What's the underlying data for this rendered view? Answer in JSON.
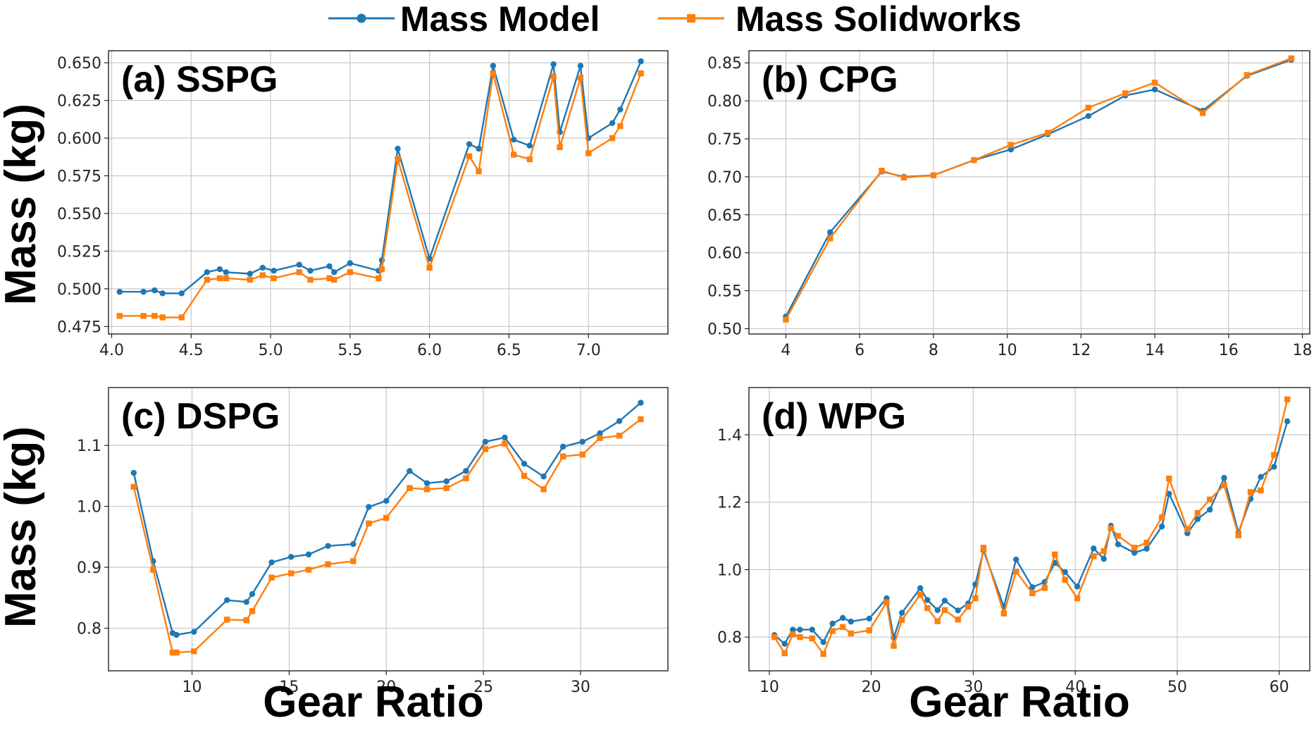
{
  "colors": {
    "mass_model": "#1f77b4",
    "mass_solidworks": "#ff7f0e"
  },
  "legend": {
    "items": [
      {
        "label": "Mass Model",
        "marker": "circle",
        "color": "#1f77b4"
      },
      {
        "label": "Mass Solidworks",
        "marker": "square",
        "color": "#ff7f0e"
      }
    ]
  },
  "xlabel": "Gear Ratio",
  "ylabel": "Mass (kg)",
  "chart_data": [
    {
      "id": "a",
      "type": "line",
      "title": "(a) SSPG",
      "xlabel": "Gear Ratio",
      "ylabel": "Mass (kg)",
      "xlim": [
        3.98,
        7.5
      ],
      "ylim": [
        0.47,
        0.658
      ],
      "xticks": [
        4.0,
        4.5,
        5.0,
        5.5,
        6.0,
        6.5,
        7.0
      ],
      "xtick_labels": [
        "4.0",
        "4.5",
        "5.0",
        "5.5",
        "6.0",
        "6.5",
        "7.0"
      ],
      "yticks": [
        0.475,
        0.5,
        0.525,
        0.55,
        0.575,
        0.6,
        0.625,
        0.65
      ],
      "ytick_labels": [
        "0.475",
        "0.500",
        "0.525",
        "0.550",
        "0.575",
        "0.600",
        "0.625",
        "0.650"
      ],
      "series": [
        {
          "name": "Mass Model",
          "x": [
            4.05,
            4.2,
            4.27,
            4.32,
            4.44,
            4.6,
            4.68,
            4.72,
            4.87,
            4.95,
            5.02,
            5.18,
            5.25,
            5.37,
            5.4,
            5.5,
            5.68,
            5.7,
            5.8,
            6.0,
            6.25,
            6.31,
            6.4,
            6.53,
            6.63,
            6.78,
            6.82,
            6.95,
            7.0,
            7.15,
            7.2,
            7.33
          ],
          "values": [
            0.498,
            0.498,
            0.499,
            0.497,
            0.497,
            0.511,
            0.513,
            0.511,
            0.51,
            0.514,
            0.512,
            0.516,
            0.512,
            0.515,
            0.511,
            0.517,
            0.512,
            0.519,
            0.593,
            0.52,
            0.596,
            0.593,
            0.648,
            0.599,
            0.595,
            0.649,
            0.604,
            0.648,
            0.6,
            0.61,
            0.619,
            0.651
          ]
        },
        {
          "name": "Mass Solidworks",
          "x": [
            4.05,
            4.2,
            4.27,
            4.32,
            4.44,
            4.6,
            4.68,
            4.72,
            4.87,
            4.95,
            5.02,
            5.18,
            5.25,
            5.37,
            5.4,
            5.5,
            5.68,
            5.7,
            5.8,
            6.0,
            6.25,
            6.31,
            6.4,
            6.53,
            6.63,
            6.78,
            6.82,
            6.95,
            7.0,
            7.15,
            7.2,
            7.33
          ],
          "values": [
            0.482,
            0.482,
            0.482,
            0.481,
            0.481,
            0.506,
            0.507,
            0.507,
            0.506,
            0.509,
            0.507,
            0.511,
            0.506,
            0.507,
            0.506,
            0.511,
            0.507,
            0.513,
            0.586,
            0.514,
            0.588,
            0.578,
            0.643,
            0.589,
            0.586,
            0.641,
            0.594,
            0.64,
            0.59,
            0.6,
            0.608,
            0.643
          ]
        }
      ]
    },
    {
      "id": "b",
      "type": "line",
      "title": "(b) CPG",
      "xlabel": "Gear Ratio",
      "ylabel": "Mass (kg)",
      "xlim": [
        3.0,
        18.2
      ],
      "ylim": [
        0.493,
        0.866
      ],
      "xticks": [
        4,
        6,
        8,
        10,
        12,
        14,
        16,
        18
      ],
      "xtick_labels": [
        "4",
        "6",
        "8",
        "10",
        "12",
        "14",
        "16",
        "18"
      ],
      "yticks": [
        0.5,
        0.55,
        0.6,
        0.65,
        0.7,
        0.75,
        0.8,
        0.85
      ],
      "ytick_labels": [
        "0.50",
        "0.55",
        "0.60",
        "0.65",
        "0.70",
        "0.75",
        "0.80",
        "0.85"
      ],
      "series": [
        {
          "name": "Mass Model",
          "x": [
            4.0,
            5.2,
            6.6,
            7.2,
            8.0,
            9.1,
            10.1,
            11.1,
            12.2,
            13.2,
            14.0,
            15.3,
            16.5,
            17.7
          ],
          "values": [
            0.516,
            0.627,
            0.707,
            0.7,
            0.702,
            0.722,
            0.736,
            0.756,
            0.78,
            0.807,
            0.815,
            0.787,
            0.833,
            0.854
          ]
        },
        {
          "name": "Mass Solidworks",
          "x": [
            4.0,
            5.2,
            6.6,
            7.2,
            8.0,
            9.1,
            10.1,
            11.1,
            12.2,
            13.2,
            14.0,
            15.3,
            16.5,
            17.7
          ],
          "values": [
            0.512,
            0.619,
            0.708,
            0.699,
            0.702,
            0.722,
            0.742,
            0.758,
            0.791,
            0.81,
            0.824,
            0.784,
            0.834,
            0.856
          ]
        }
      ]
    },
    {
      "id": "c",
      "type": "line",
      "title": "(c) DSPG",
      "xlabel": "Gear Ratio",
      "ylabel": "Mass (kg)",
      "xlim": [
        5.7,
        34.5
      ],
      "ylim": [
        0.73,
        1.195
      ],
      "xticks": [
        10,
        15,
        20,
        25,
        30
      ],
      "xtick_labels": [
        "10",
        "15",
        "20",
        "25",
        "30"
      ],
      "yticks": [
        0.8,
        0.9,
        1.0,
        1.1
      ],
      "ytick_labels": [
        "0.8",
        "0.9",
        "1.0",
        "1.1"
      ],
      "series": [
        {
          "name": "Mass Model",
          "x": [
            7.0,
            8.0,
            9.0,
            9.2,
            10.1,
            11.8,
            12.8,
            13.1,
            14.1,
            15.1,
            16.0,
            17.0,
            18.3,
            19.1,
            20.0,
            21.2,
            22.1,
            23.1,
            24.1,
            25.1,
            26.1,
            27.1,
            28.1,
            29.1,
            30.1,
            31.0,
            32.0,
            33.1
          ],
          "values": [
            1.055,
            0.91,
            0.792,
            0.789,
            0.794,
            0.846,
            0.843,
            0.856,
            0.908,
            0.917,
            0.921,
            0.935,
            0.938,
            0.999,
            1.009,
            1.058,
            1.038,
            1.041,
            1.058,
            1.106,
            1.113,
            1.07,
            1.049,
            1.098,
            1.106,
            1.12,
            1.14,
            1.17
          ]
        },
        {
          "name": "Mass Solidworks",
          "x": [
            7.0,
            8.0,
            9.0,
            9.2,
            10.1,
            11.8,
            12.8,
            13.1,
            14.1,
            15.1,
            16.0,
            17.0,
            18.3,
            19.1,
            20.0,
            21.2,
            22.1,
            23.1,
            24.1,
            25.1,
            26.1,
            27.1,
            28.1,
            29.1,
            30.1,
            31.0,
            32.0,
            33.1
          ],
          "values": [
            1.032,
            0.896,
            0.76,
            0.76,
            0.762,
            0.814,
            0.813,
            0.828,
            0.883,
            0.89,
            0.896,
            0.905,
            0.91,
            0.972,
            0.981,
            1.03,
            1.028,
            1.03,
            1.046,
            1.094,
            1.103,
            1.05,
            1.028,
            1.082,
            1.085,
            1.112,
            1.116,
            1.143
          ]
        }
      ]
    },
    {
      "id": "d",
      "type": "line",
      "title": "(d) WPG",
      "xlabel": "Gear Ratio",
      "ylabel": "Mass (kg)",
      "xlim": [
        8.0,
        63.0
      ],
      "ylim": [
        0.7,
        1.54
      ],
      "xticks": [
        10,
        20,
        30,
        40,
        50,
        60
      ],
      "xtick_labels": [
        "10",
        "20",
        "30",
        "40",
        "50",
        "60"
      ],
      "yticks": [
        0.8,
        1.0,
        1.2,
        1.4
      ],
      "ytick_labels": [
        "0.8",
        "1.0",
        "1.2",
        "1.4"
      ],
      "series": [
        {
          "name": "Mass Model",
          "x": [
            10.5,
            11.5,
            12.3,
            13.0,
            14.2,
            15.3,
            16.2,
            17.2,
            18.0,
            19.8,
            21.5,
            22.2,
            23.0,
            24.8,
            25.5,
            26.5,
            27.2,
            28.5,
            29.5,
            30.2,
            31.0,
            33.0,
            34.2,
            35.8,
            37.0,
            38.0,
            39.0,
            40.2,
            41.8,
            42.8,
            43.5,
            44.2,
            45.8,
            47.0,
            48.5,
            49.2,
            51.0,
            52.0,
            53.2,
            54.6,
            56.0,
            57.2,
            58.2,
            59.5,
            60.8
          ],
          "values": [
            0.806,
            0.78,
            0.822,
            0.822,
            0.822,
            0.785,
            0.84,
            0.857,
            0.846,
            0.855,
            0.915,
            0.798,
            0.872,
            0.945,
            0.91,
            0.88,
            0.908,
            0.879,
            0.9,
            0.956,
            1.057,
            0.89,
            1.03,
            0.948,
            0.963,
            1.02,
            0.993,
            0.95,
            1.063,
            1.032,
            1.13,
            1.075,
            1.05,
            1.062,
            1.128,
            1.225,
            1.108,
            1.15,
            1.178,
            1.272,
            1.11,
            1.21,
            1.275,
            1.305,
            1.44
          ]
        },
        {
          "name": "Mass Solidworks",
          "x": [
            10.5,
            11.5,
            12.3,
            13.0,
            14.2,
            15.3,
            16.2,
            17.2,
            18.0,
            19.8,
            21.5,
            22.2,
            23.0,
            24.8,
            25.5,
            26.5,
            27.2,
            28.5,
            29.5,
            30.2,
            31.0,
            33.0,
            34.2,
            35.8,
            37.0,
            38.0,
            39.0,
            40.2,
            41.8,
            42.8,
            43.5,
            44.2,
            45.8,
            47.0,
            48.5,
            49.2,
            51.0,
            52.0,
            53.2,
            54.6,
            56.0,
            57.2,
            58.2,
            59.5,
            60.8
          ],
          "values": [
            0.8,
            0.752,
            0.808,
            0.8,
            0.796,
            0.75,
            0.818,
            0.83,
            0.811,
            0.82,
            0.903,
            0.774,
            0.851,
            0.925,
            0.886,
            0.847,
            0.88,
            0.852,
            0.89,
            0.915,
            1.065,
            0.87,
            0.994,
            0.93,
            0.946,
            1.045,
            0.97,
            0.915,
            1.04,
            1.055,
            1.123,
            1.1,
            1.065,
            1.08,
            1.155,
            1.27,
            1.12,
            1.168,
            1.208,
            1.25,
            1.102,
            1.23,
            1.235,
            1.34,
            1.505
          ]
        }
      ]
    }
  ]
}
